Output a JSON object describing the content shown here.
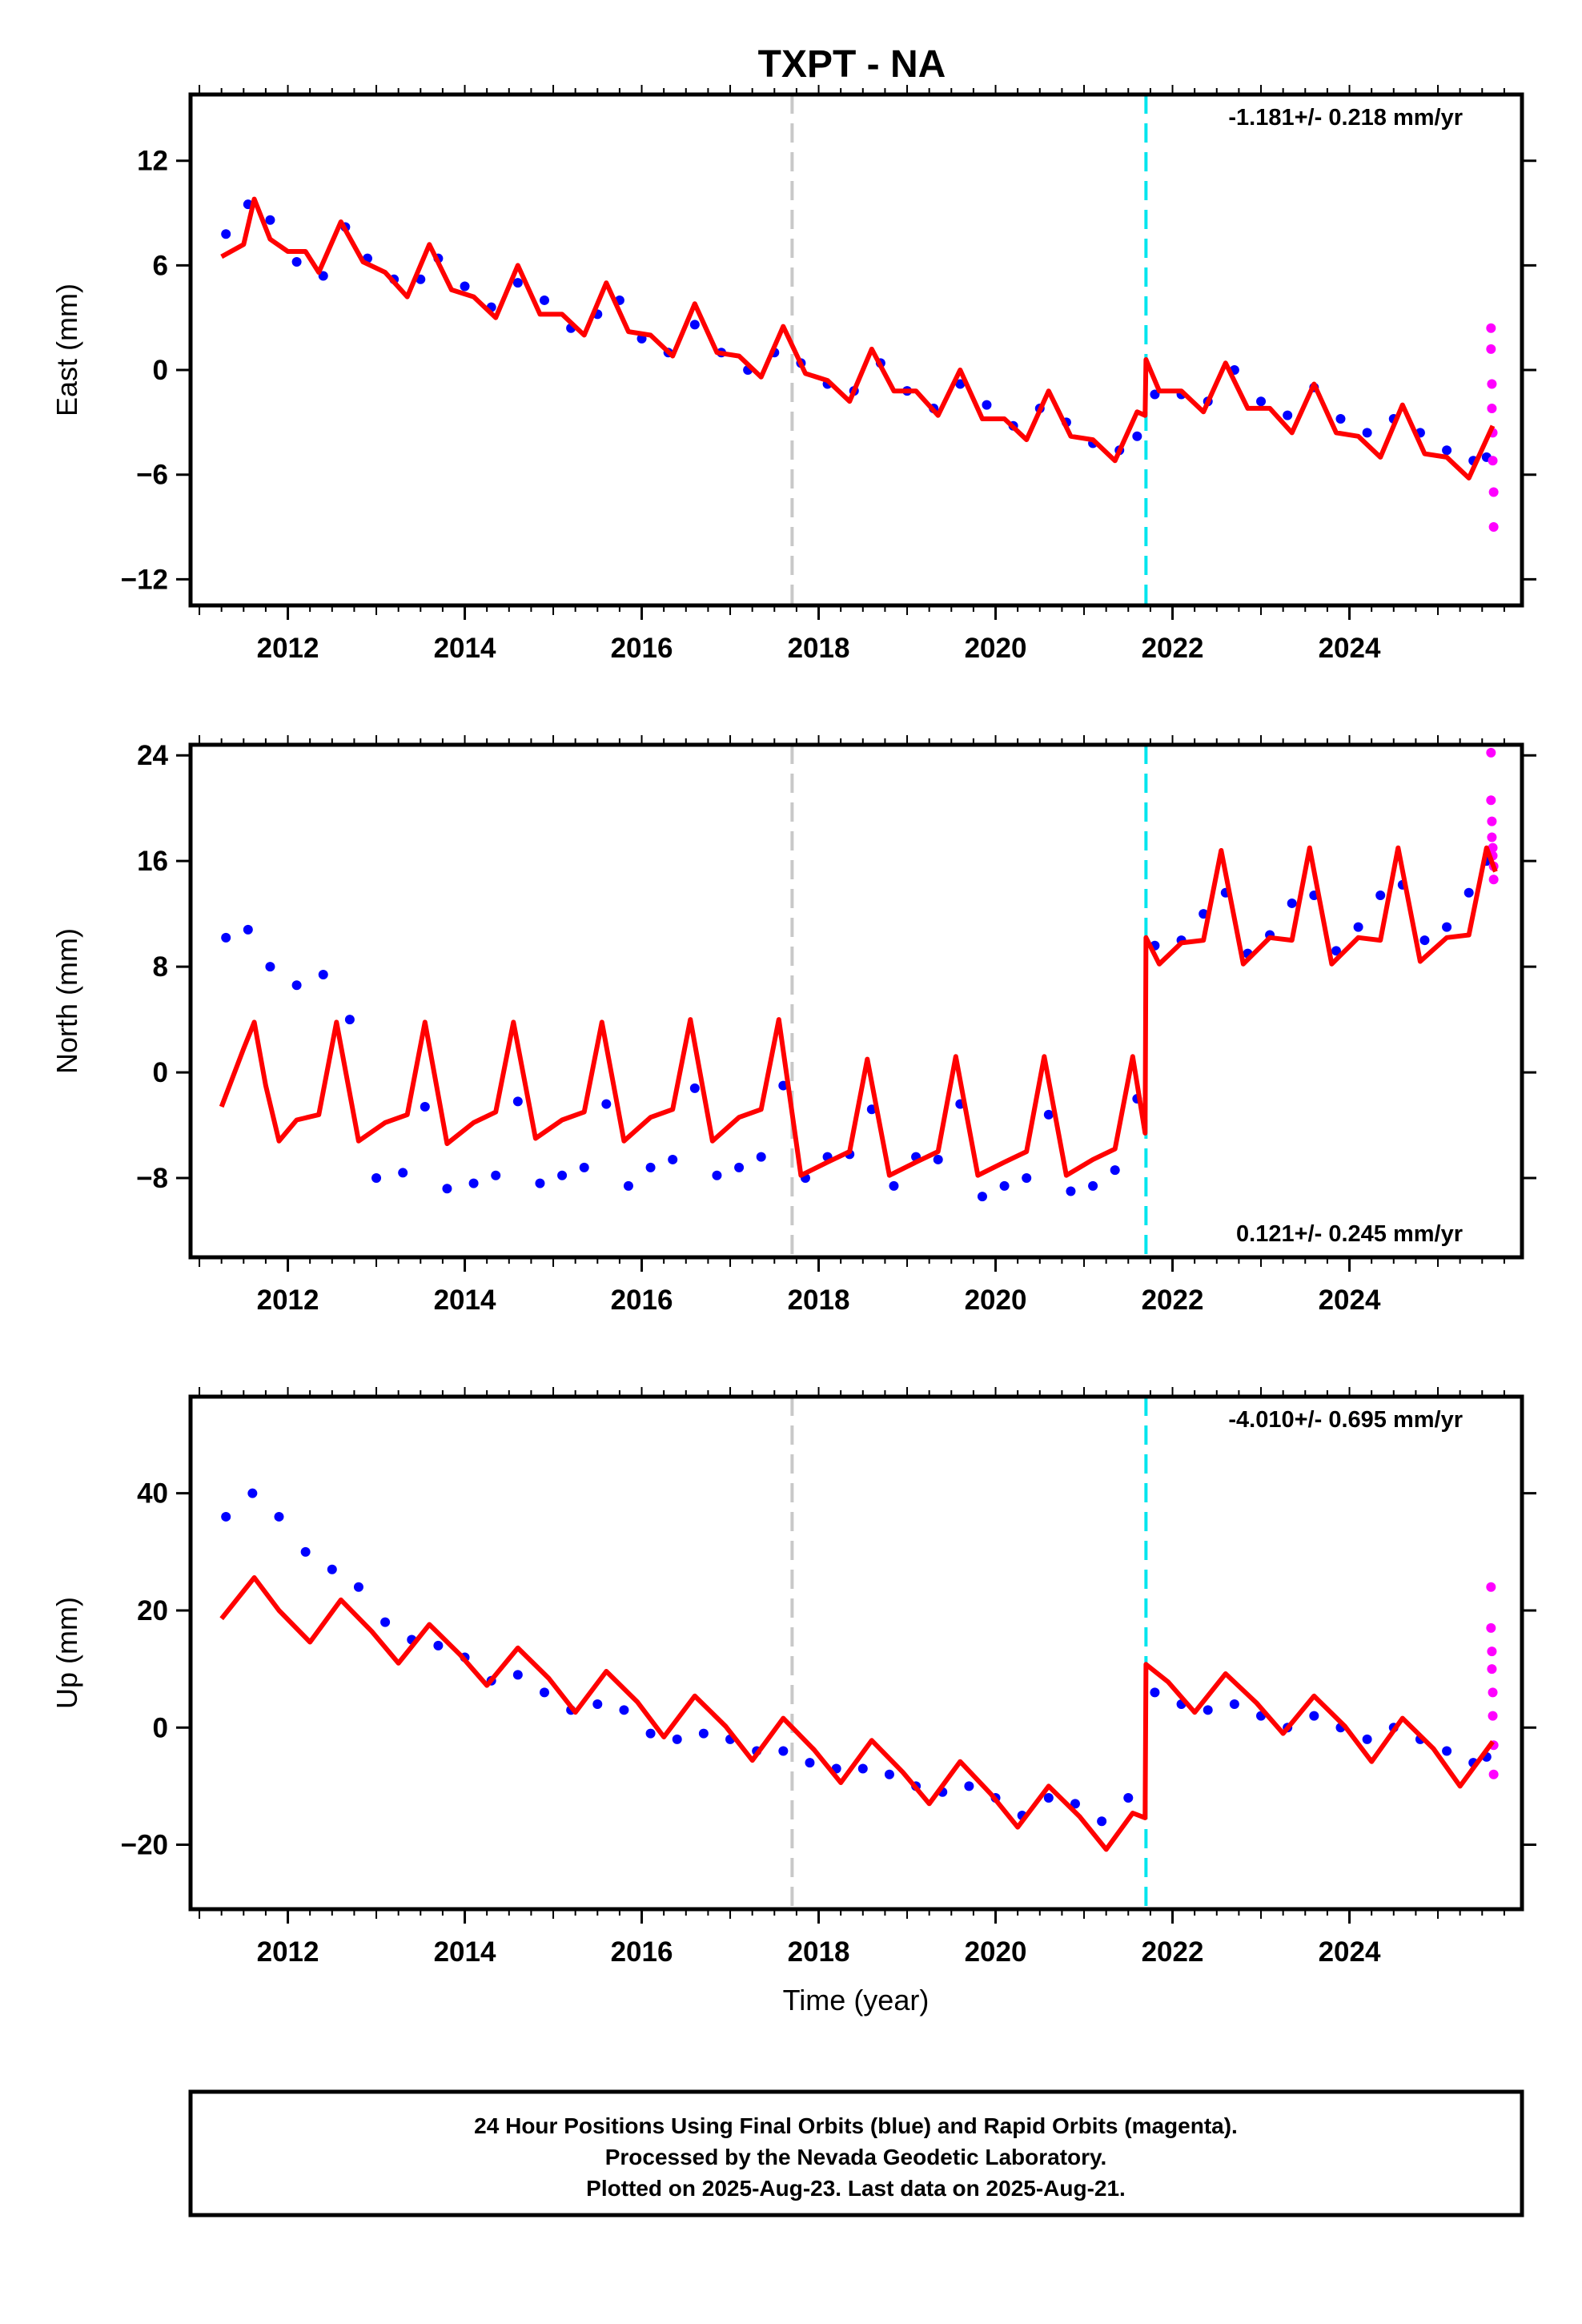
{
  "title": "TXPT - NA",
  "xlabel": "Time (year)",
  "footer": {
    "line1": "24 Hour Positions Using Final Orbits (blue) and Rapid Orbits (magenta).",
    "line2": "Processed by the Nevada Geodetic Laboratory.",
    "line3": "Plotted on 2025-Aug-23. Last data on 2025-Aug-21."
  },
  "colors": {
    "final_orbits": "#0000ff",
    "rapid_orbits": "#ff00ff",
    "model": "#ff0000",
    "event_gray": "#c8c8c8",
    "event_cyan": "#00e5ee"
  },
  "chart_data": [
    {
      "type": "scatter",
      "ylabel": "East (mm)",
      "rate": "-1.181+/- 0.218 mm/yr",
      "xlim": [
        2010.9,
        2025.95
      ],
      "ylim": [
        -13.5,
        15.8
      ],
      "xticks": [
        2012,
        2014,
        2016,
        2018,
        2020,
        2022,
        2024
      ],
      "yticks": [
        -12,
        -6,
        0,
        6,
        12
      ],
      "grid": false,
      "event_lines": [
        {
          "x": 2017.7,
          "style": "gray-dashed"
        },
        {
          "x": 2021.7,
          "style": "cyan-dashed"
        }
      ],
      "series": [
        {
          "type": "line",
          "color": "red",
          "x": [
            2011.25,
            2011.5,
            2011.62,
            2011.8,
            2012.0,
            2012.2,
            2012.35,
            2012.6,
            2012.85,
            2013.1,
            2013.35,
            2013.6,
            2013.85,
            2014.1,
            2014.35,
            2014.6,
            2014.85,
            2015.1,
            2015.35,
            2015.6,
            2015.85,
            2016.1,
            2016.35,
            2016.6,
            2016.85,
            2017.1,
            2017.35,
            2017.6,
            2017.85,
            2018.1,
            2018.35,
            2018.6,
            2018.85,
            2019.1,
            2019.35,
            2019.6,
            2019.85,
            2020.1,
            2020.35,
            2020.6,
            2020.85,
            2021.1,
            2021.35,
            2021.6,
            2021.69,
            2021.7,
            2021.85,
            2022.1,
            2022.35,
            2022.6,
            2022.85,
            2023.1,
            2023.35,
            2023.6,
            2023.85,
            2024.1,
            2024.35,
            2024.6,
            2024.85,
            2025.1,
            2025.35,
            2025.62
          ],
          "y": [
            6.5,
            7.2,
            9.8,
            7.5,
            6.8,
            6.8,
            5.6,
            8.5,
            6.2,
            5.6,
            4.2,
            7.2,
            4.6,
            4.2,
            3.0,
            6.0,
            3.2,
            3.2,
            2.0,
            5.0,
            2.2,
            2.0,
            0.8,
            3.8,
            1.0,
            0.8,
            -0.4,
            2.5,
            -0.2,
            -0.6,
            -1.8,
            1.2,
            -1.2,
            -1.2,
            -2.6,
            0.0,
            -2.8,
            -2.8,
            -4.0,
            -1.2,
            -3.8,
            -4.0,
            -5.2,
            -2.4,
            -2.6,
            0.6,
            -1.2,
            -1.2,
            -2.4,
            0.4,
            -2.2,
            -2.2,
            -3.6,
            -0.8,
            -3.6,
            -3.8,
            -5.0,
            -2.0,
            -4.8,
            -5.0,
            -6.2,
            -3.2
          ]
        },
        {
          "type": "scatter",
          "color": "blue",
          "x": [
            2011.3,
            2011.55,
            2011.8,
            2012.1,
            2012.4,
            2012.65,
            2012.9,
            2013.2,
            2013.5,
            2013.7,
            2014.0,
            2014.3,
            2014.6,
            2014.9,
            2015.2,
            2015.5,
            2015.75,
            2016.0,
            2016.3,
            2016.6,
            2016.9,
            2017.2,
            2017.5,
            2017.8,
            2018.1,
            2018.4,
            2018.7,
            2019.0,
            2019.3,
            2019.6,
            2019.9,
            2020.2,
            2020.5,
            2020.8,
            2021.1,
            2021.4,
            2021.6,
            2021.8,
            2022.1,
            2022.4,
            2022.7,
            2023.0,
            2023.3,
            2023.6,
            2023.9,
            2024.2,
            2024.5,
            2024.8,
            2025.1,
            2025.4,
            2025.55
          ],
          "y": [
            7.8,
            9.5,
            8.6,
            6.2,
            5.4,
            8.2,
            6.4,
            5.2,
            5.2,
            6.4,
            4.8,
            3.6,
            5.0,
            4.0,
            2.4,
            3.2,
            4.0,
            1.8,
            1.0,
            2.6,
            1.0,
            0.0,
            1.0,
            0.4,
            -0.8,
            -1.2,
            0.4,
            -1.2,
            -2.2,
            -0.8,
            -2.0,
            -3.2,
            -2.2,
            -3.0,
            -4.2,
            -4.6,
            -3.8,
            -1.4,
            -1.4,
            -1.8,
            0.0,
            -1.8,
            -2.6,
            -1.0,
            -2.8,
            -3.6,
            -2.8,
            -3.6,
            -4.6,
            -5.2,
            -5.0
          ]
        },
        {
          "type": "scatter",
          "color": "magenta",
          "x": [
            2025.6,
            2025.6,
            2025.61,
            2025.61,
            2025.62,
            2025.62,
            2025.63,
            2025.63
          ],
          "y": [
            2.4,
            1.2,
            -0.8,
            -2.2,
            -3.6,
            -5.2,
            -7.0,
            -9.0
          ]
        }
      ]
    },
    {
      "type": "scatter",
      "ylabel": "North (mm)",
      "rate": "0.121+/- 0.245 mm/yr",
      "xlim": [
        2010.9,
        2025.95
      ],
      "ylim": [
        -14.0,
        24.8
      ],
      "xticks": [
        2012,
        2014,
        2016,
        2018,
        2020,
        2022,
        2024
      ],
      "yticks": [
        -8,
        0,
        8,
        16,
        24
      ],
      "grid": false,
      "event_lines": [
        {
          "x": 2017.7,
          "style": "gray-dashed"
        },
        {
          "x": 2021.7,
          "style": "cyan-dashed"
        }
      ],
      "series": [
        {
          "type": "line",
          "color": "red",
          "x": [
            2011.25,
            2011.5,
            2011.62,
            2011.75,
            2011.9,
            2012.1,
            2012.35,
            2012.55,
            2012.8,
            2013.1,
            2013.35,
            2013.55,
            2013.8,
            2014.1,
            2014.35,
            2014.55,
            2014.8,
            2015.1,
            2015.35,
            2015.55,
            2015.8,
            2016.1,
            2016.35,
            2016.55,
            2016.8,
            2017.1,
            2017.35,
            2017.55,
            2017.8,
            2018.1,
            2018.35,
            2018.55,
            2018.8,
            2019.1,
            2019.35,
            2019.55,
            2019.8,
            2020.1,
            2020.35,
            2020.55,
            2020.8,
            2021.1,
            2021.35,
            2021.55,
            2021.69,
            2021.7,
            2021.85,
            2022.1,
            2022.35,
            2022.55,
            2022.8,
            2023.1,
            2023.35,
            2023.55,
            2023.8,
            2024.1,
            2024.35,
            2024.55,
            2024.8,
            2025.1,
            2025.35,
            2025.55,
            2025.65
          ],
          "y": [
            -2.6,
            1.8,
            3.8,
            -1.0,
            -5.2,
            -3.6,
            -3.2,
            3.8,
            -5.2,
            -3.8,
            -3.2,
            3.8,
            -5.4,
            -3.8,
            -3.0,
            3.8,
            -5.0,
            -3.6,
            -3.0,
            3.8,
            -5.2,
            -3.4,
            -2.8,
            4.0,
            -5.2,
            -3.4,
            -2.8,
            4.0,
            -7.8,
            -6.8,
            -6.0,
            1.0,
            -7.8,
            -6.8,
            -6.0,
            1.2,
            -7.8,
            -6.8,
            -6.0,
            1.2,
            -7.8,
            -6.6,
            -5.8,
            1.2,
            -4.6,
            10.2,
            8.2,
            9.8,
            10.0,
            16.8,
            8.2,
            10.2,
            10.0,
            17.0,
            8.2,
            10.2,
            10.0,
            17.0,
            8.4,
            10.2,
            10.4,
            17.0,
            15.2
          ]
        },
        {
          "type": "scatter",
          "color": "blue",
          "x": [
            2011.3,
            2011.55,
            2011.8,
            2012.1,
            2012.4,
            2012.7,
            2013.0,
            2013.3,
            2013.55,
            2013.8,
            2014.1,
            2014.35,
            2014.6,
            2014.85,
            2015.1,
            2015.35,
            2015.6,
            2015.85,
            2016.1,
            2016.35,
            2016.6,
            2016.85,
            2017.1,
            2017.35,
            2017.6,
            2017.85,
            2018.1,
            2018.35,
            2018.6,
            2018.85,
            2019.1,
            2019.35,
            2019.6,
            2019.85,
            2020.1,
            2020.35,
            2020.6,
            2020.85,
            2021.1,
            2021.35,
            2021.6,
            2021.8,
            2022.1,
            2022.35,
            2022.6,
            2022.85,
            2023.1,
            2023.35,
            2023.6,
            2023.85,
            2024.1,
            2024.35,
            2024.6,
            2024.85,
            2025.1,
            2025.35,
            2025.55
          ],
          "y": [
            10.2,
            10.8,
            8.0,
            6.6,
            7.4,
            4.0,
            -8.0,
            -7.6,
            -2.6,
            -8.8,
            -8.4,
            -7.8,
            -2.2,
            -8.4,
            -7.8,
            -7.2,
            -2.4,
            -8.6,
            -7.2,
            -6.6,
            -1.2,
            -7.8,
            -7.2,
            -6.4,
            -1.0,
            -8.0,
            -6.4,
            -6.2,
            -2.8,
            -8.6,
            -6.4,
            -6.6,
            -2.4,
            -9.4,
            -8.6,
            -8.0,
            -3.2,
            -9.0,
            -8.6,
            -7.4,
            -2.0,
            9.6,
            10.0,
            12.0,
            13.6,
            9.0,
            10.4,
            12.8,
            13.4,
            9.2,
            11.0,
            13.4,
            14.2,
            10.0,
            11.0,
            13.6,
            16.0
          ]
        },
        {
          "type": "scatter",
          "color": "magenta",
          "x": [
            2025.6,
            2025.6,
            2025.61,
            2025.61,
            2025.62,
            2025.62,
            2025.63,
            2025.63
          ],
          "y": [
            24.2,
            20.6,
            19.0,
            17.8,
            17.0,
            16.4,
            15.6,
            14.6
          ]
        }
      ]
    },
    {
      "type": "scatter",
      "ylabel": "Up (mm)",
      "rate": "-4.010+/- 0.695 mm/yr",
      "xlim": [
        2010.9,
        2025.95
      ],
      "ylim": [
        -31.0,
        56.5
      ],
      "xticks": [
        2012,
        2014,
        2016,
        2018,
        2020,
        2022,
        2024
      ],
      "yticks": [
        -20,
        0,
        20,
        40
      ],
      "xlabel": "Time (year)",
      "grid": false,
      "event_lines": [
        {
          "x": 2017.7,
          "style": "gray-dashed"
        },
        {
          "x": 2021.7,
          "style": "cyan-dashed"
        }
      ],
      "series": [
        {
          "type": "line",
          "color": "red",
          "x": [
            2011.25,
            2011.62,
            2011.9,
            2012.25,
            2012.6,
            2012.95,
            2013.25,
            2013.6,
            2013.95,
            2014.25,
            2014.6,
            2014.95,
            2015.25,
            2015.6,
            2015.95,
            2016.25,
            2016.6,
            2016.95,
            2017.25,
            2017.6,
            2017.95,
            2018.25,
            2018.6,
            2018.95,
            2019.25,
            2019.6,
            2019.95,
            2020.25,
            2020.6,
            2020.95,
            2021.25,
            2021.55,
            2021.69,
            2021.7,
            2021.95,
            2022.25,
            2022.6,
            2022.95,
            2023.25,
            2023.6,
            2023.95,
            2024.25,
            2024.6,
            2024.95,
            2025.25,
            2025.62
          ],
          "y": [
            18.6,
            25.6,
            20.0,
            14.6,
            21.8,
            16.4,
            11.0,
            17.6,
            12.4,
            7.2,
            13.6,
            8.4,
            2.6,
            9.6,
            4.4,
            -1.6,
            5.4,
            0.2,
            -5.6,
            1.6,
            -3.8,
            -9.4,
            -2.2,
            -7.6,
            -13.0,
            -5.8,
            -11.4,
            -17.0,
            -10.0,
            -15.2,
            -20.8,
            -14.6,
            -15.4,
            10.8,
            7.8,
            2.6,
            9.2,
            4.2,
            -1.0,
            5.4,
            0.2,
            -5.8,
            1.6,
            -3.6,
            -10.0,
            -2.4
          ]
        },
        {
          "type": "scatter",
          "color": "blue",
          "x": [
            2011.3,
            2011.6,
            2011.9,
            2012.2,
            2012.5,
            2012.8,
            2013.1,
            2013.4,
            2013.7,
            2014.0,
            2014.3,
            2014.6,
            2014.9,
            2015.2,
            2015.5,
            2015.8,
            2016.1,
            2016.4,
            2016.7,
            2017.0,
            2017.3,
            2017.6,
            2017.9,
            2018.2,
            2018.5,
            2018.8,
            2019.1,
            2019.4,
            2019.7,
            2020.0,
            2020.3,
            2020.6,
            2020.9,
            2021.2,
            2021.5,
            2021.8,
            2022.1,
            2022.4,
            2022.7,
            2023.0,
            2023.3,
            2023.6,
            2023.9,
            2024.2,
            2024.5,
            2024.8,
            2025.1,
            2025.4,
            2025.55
          ],
          "y": [
            36.0,
            40.0,
            36.0,
            30.0,
            27.0,
            24.0,
            18.0,
            15.0,
            14.0,
            12.0,
            8.0,
            9.0,
            6.0,
            3.0,
            4.0,
            3.0,
            -1.0,
            -2.0,
            -1.0,
            -2.0,
            -4.0,
            -4.0,
            -6.0,
            -7.0,
            -7.0,
            -8.0,
            -10.0,
            -11.0,
            -10.0,
            -12.0,
            -15.0,
            -12.0,
            -13.0,
            -16.0,
            -12.0,
            6.0,
            4.0,
            3.0,
            4.0,
            2.0,
            0.0,
            2.0,
            0.0,
            -2.0,
            0.0,
            -2.0,
            -4.0,
            -6.0,
            -5.0
          ]
        },
        {
          "type": "scatter",
          "color": "magenta",
          "x": [
            2025.6,
            2025.6,
            2025.61,
            2025.61,
            2025.62,
            2025.62,
            2025.63,
            2025.63
          ],
          "y": [
            24.0,
            17.0,
            13.0,
            10.0,
            6.0,
            2.0,
            -3.0,
            -8.0
          ]
        }
      ]
    }
  ]
}
